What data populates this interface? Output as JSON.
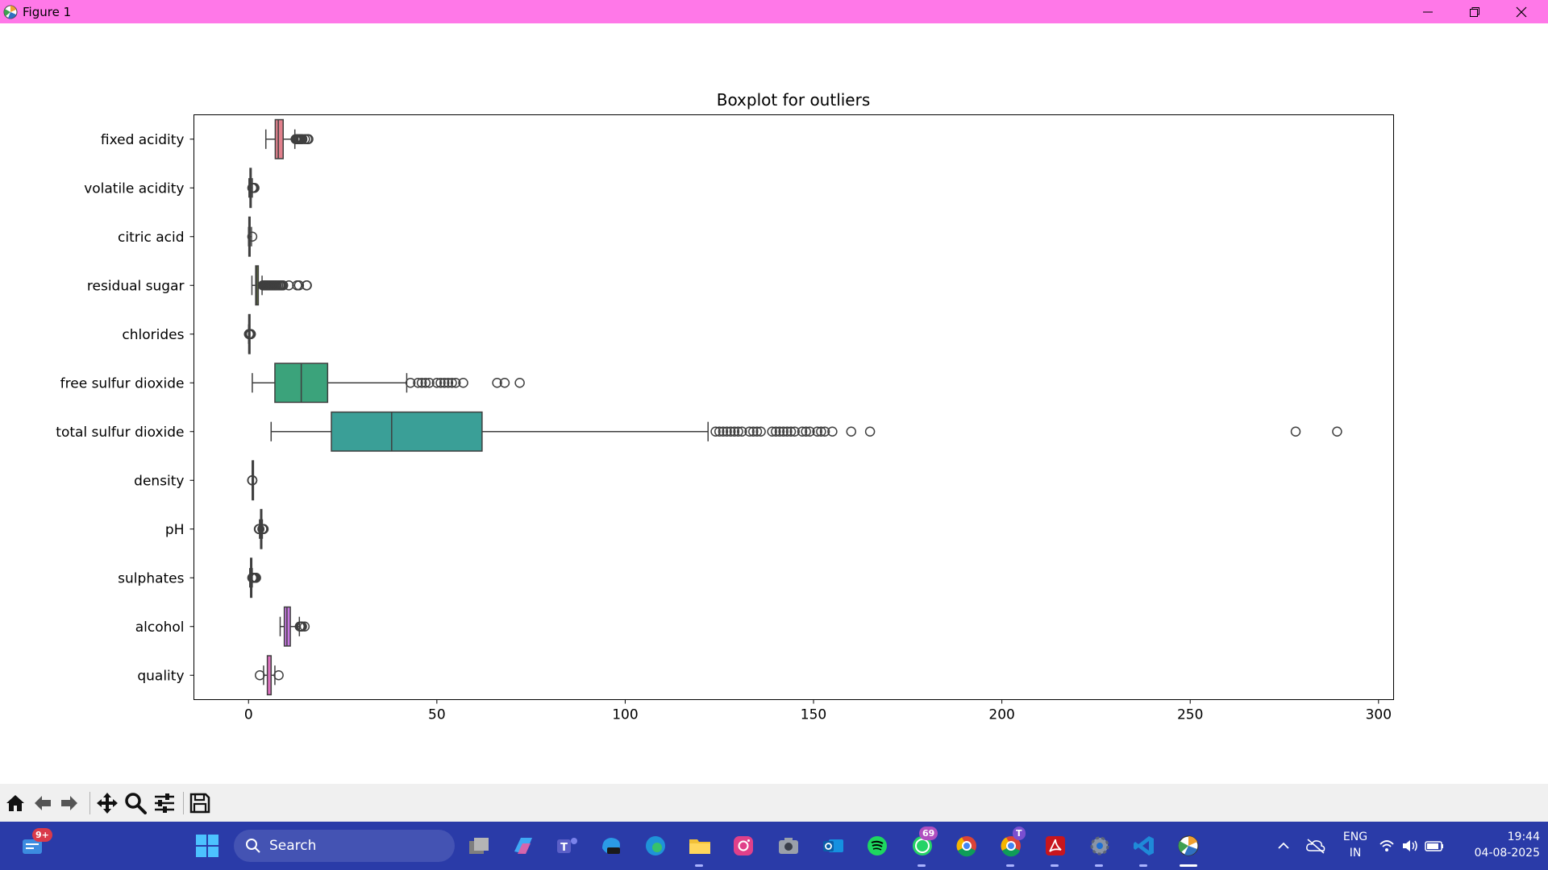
{
  "window": {
    "title": "Figure 1",
    "controls": [
      "minimize",
      "restore",
      "close"
    ]
  },
  "chart_data": {
    "type": "boxplot",
    "orientation": "horizontal",
    "title": "Boxplot for outliers",
    "xlabel": "",
    "ylabel": "",
    "xlim": [
      -14.5,
      304
    ],
    "xticks": [
      0,
      50,
      100,
      150,
      200,
      250,
      300
    ],
    "grid": false,
    "categories": [
      "fixed acidity",
      "volatile acidity",
      "citric acid",
      "residual sugar",
      "chlorides",
      "free sulfur dioxide",
      "total sulfur dioxide",
      "density",
      "pH",
      "sulphates",
      "alcohol",
      "quality"
    ],
    "colors": [
      "#e1808c",
      "#d08c3d",
      "#a59b3a",
      "#86a33a",
      "#3aa563",
      "#3ba37b",
      "#3a9f97",
      "#3e9cac",
      "#49a0c8",
      "#8c9be6",
      "#c878e3",
      "#df72c0"
    ],
    "series": [
      {
        "min": 4.6,
        "q1": 7.1,
        "median": 7.9,
        "q3": 9.2,
        "max": 12.3,
        "outliers": [
          12.5,
          12.8,
          13.0,
          13.3,
          13.5,
          13.8,
          14.0,
          14.3,
          15.0,
          15.6,
          15.9
        ]
      },
      {
        "min": 0.12,
        "q1": 0.39,
        "median": 0.52,
        "q3": 0.64,
        "max": 1.01,
        "outliers": [
          1.02,
          1.04,
          1.07,
          1.09,
          1.13,
          1.18,
          1.24,
          1.33,
          1.58
        ]
      },
      {
        "min": 0.0,
        "q1": 0.09,
        "median": 0.26,
        "q3": 0.42,
        "max": 0.79,
        "outliers": [
          1.0
        ]
      },
      {
        "min": 0.9,
        "q1": 1.9,
        "median": 2.2,
        "q3": 2.6,
        "max": 3.6,
        "outliers": [
          3.8,
          4.0,
          4.2,
          4.4,
          4.6,
          4.8,
          5.0,
          5.2,
          5.4,
          5.6,
          5.8,
          6.0,
          6.3,
          6.6,
          6.9,
          7.2,
          7.5,
          7.9,
          8.3,
          8.6,
          8.9,
          9.2,
          10.7,
          12.9,
          13.4,
          15.4,
          15.5
        ]
      },
      {
        "min": 0.012,
        "q1": 0.07,
        "median": 0.079,
        "q3": 0.09,
        "max": 0.119,
        "outliers": [
          0.12,
          0.15,
          0.2,
          0.25,
          0.3,
          0.36,
          0.42,
          0.5,
          0.6,
          0.61
        ]
      },
      {
        "min": 1,
        "q1": 7,
        "median": 14,
        "q3": 21,
        "max": 42,
        "outliers": [
          43,
          45,
          46,
          47,
          48,
          50,
          51,
          52,
          53,
          54,
          55,
          57,
          66,
          68,
          72
        ]
      },
      {
        "min": 6,
        "q1": 22,
        "median": 38,
        "q3": 62,
        "max": 122,
        "outliers": [
          124,
          125,
          126,
          127,
          128,
          129,
          130,
          131,
          133,
          134,
          135,
          136,
          139,
          140,
          141,
          142,
          143,
          144,
          145,
          147,
          148,
          149,
          151,
          152,
          153,
          155,
          160,
          165,
          278,
          289
        ]
      },
      {
        "min": 0.9923,
        "q1": 0.9956,
        "median": 0.9968,
        "q3": 0.9978,
        "max": 1.001,
        "outliers": [
          0.9901,
          0.9912,
          1.002,
          1.0037
        ]
      },
      {
        "min": 2.92,
        "q1": 3.21,
        "median": 3.31,
        "q3": 3.4,
        "max": 3.68,
        "outliers": [
          2.74,
          2.86,
          2.88,
          3.69,
          3.72,
          3.75,
          3.78,
          3.85,
          3.9,
          4.01
        ]
      },
      {
        "min": 0.33,
        "q1": 0.55,
        "median": 0.62,
        "q3": 0.73,
        "max": 0.99,
        "outliers": [
          1.0,
          1.05,
          1.1,
          1.15,
          1.2,
          1.26,
          1.36,
          1.5,
          1.62,
          1.7,
          1.95,
          2.0
        ]
      },
      {
        "min": 8.4,
        "q1": 9.5,
        "median": 10.2,
        "q3": 11.1,
        "max": 13.5,
        "outliers": [
          13.6,
          13.8,
          14.0,
          14.2,
          14.9
        ]
      },
      {
        "min": 4,
        "q1": 5,
        "median": 6,
        "q3": 6,
        "max": 7,
        "outliers": [
          3,
          8
        ]
      }
    ]
  },
  "toolbar": {
    "buttons": [
      "home-icon",
      "back-icon",
      "forward-icon",
      "pan-icon",
      "zoom-icon",
      "configure-subplots-icon",
      "save-icon"
    ]
  },
  "taskbar": {
    "notification_badge": "9+",
    "search_placeholder": "Search",
    "whatsapp_badge": "69",
    "chrome_profile_badge": "T",
    "language_line1": "ENG",
    "language_line2": "IN",
    "time": "19:44",
    "date": "04-08-2025"
  }
}
